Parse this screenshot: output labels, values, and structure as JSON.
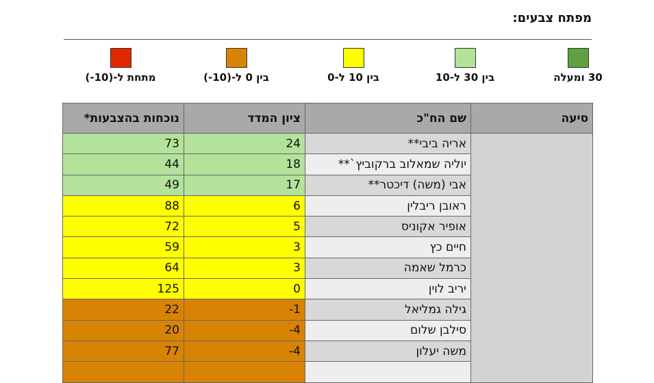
{
  "legend": {
    "title": "מפתח צבעים:",
    "items": [
      {
        "label": "30 ומעלה",
        "color": "#5fa043"
      },
      {
        "label": "בין 30 ל-10",
        "color": "#b3e29b"
      },
      {
        "label": "בין 10 ל-0",
        "color": "#ffff00"
      },
      {
        "label": "בין 0 ל-(10-)",
        "color": "#d98305"
      },
      {
        "label": "מתחת ל-(10-)",
        "color": "#e12700"
      }
    ]
  },
  "table": {
    "headers": [
      "סיעה",
      "שם הח\"כ",
      "ציון המדד",
      "נוכחות בהצבעות*"
    ],
    "party": "",
    "rows": [
      {
        "name": "אריה ביבי**",
        "score": "24",
        "attendance": "73",
        "color": "#b3e29b"
      },
      {
        "name": "יוליה שמאלוב ברקוביץ`**",
        "score": "18",
        "attendance": "44",
        "color": "#b3e29b"
      },
      {
        "name": "אבי (משה) דיכטר**",
        "score": "17",
        "attendance": "49",
        "color": "#b3e29b"
      },
      {
        "name": "ראובן ריבלין",
        "score": "6",
        "attendance": "88",
        "color": "#ffff00"
      },
      {
        "name": "אופיר אקוניס",
        "score": "5",
        "attendance": "72",
        "color": "#ffff00"
      },
      {
        "name": "חיים כץ",
        "score": "3",
        "attendance": "59",
        "color": "#ffff00"
      },
      {
        "name": "כרמל שאמה",
        "score": "3",
        "attendance": "64",
        "color": "#ffff00"
      },
      {
        "name": "יריב לוין",
        "score": "0",
        "attendance": "125",
        "color": "#ffff00"
      },
      {
        "name": "גילה גמליאל",
        "score": "-1",
        "attendance": "22",
        "color": "#d98305"
      },
      {
        "name": "סילבן שלום",
        "score": "-4",
        "attendance": "20",
        "color": "#d98305"
      },
      {
        "name": "משה יעלון",
        "score": "-4",
        "attendance": "77",
        "color": "#d98305"
      },
      {
        "name": "",
        "score": "",
        "attendance": "",
        "color": "#d98305"
      }
    ]
  }
}
